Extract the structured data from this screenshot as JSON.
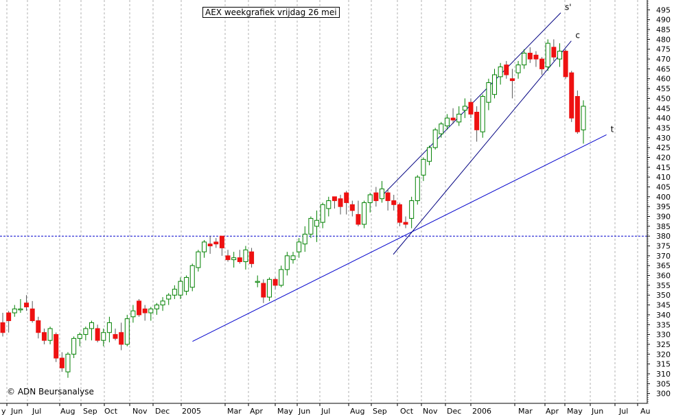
{
  "chart_data": {
    "type": "candlestick",
    "title": "AEX weekgrafiek vrijdag 26 mei",
    "copyright": "© ADN Beursanalyse",
    "ylim": [
      295,
      500
    ],
    "y_ticks": [
      300,
      305,
      310,
      315,
      320,
      325,
      330,
      335,
      340,
      345,
      350,
      355,
      360,
      365,
      370,
      375,
      380,
      385,
      390,
      395,
      400,
      405,
      410,
      415,
      420,
      425,
      430,
      435,
      440,
      445,
      450,
      455,
      460,
      465,
      470,
      475,
      480,
      485,
      490,
      495
    ],
    "x_axis_labels": [
      "y",
      "Jun",
      "Jul",
      "Aug",
      "Sep",
      "Oct",
      "Nov",
      "Dec",
      "2005",
      "Mar",
      "Apr",
      "May",
      "Jun",
      "Jul",
      "Aug",
      "Sep",
      "Oct",
      "Nov",
      "Dec",
      "2006",
      "Mar",
      "Apr",
      "May",
      "Jun",
      "Jul",
      "Au"
    ],
    "grid": "vertical dashed",
    "colors": {
      "up": "#ffffff",
      "up_border": "#008000",
      "down": "#ee1111",
      "trendline": "#0000cc",
      "channel": "#000080",
      "grid": "#b0b0b0"
    },
    "candles": [
      [
        336,
        341,
        329,
        331
      ],
      [
        341,
        342,
        331,
        337
      ],
      [
        341,
        345,
        339,
        343
      ],
      [
        343,
        348,
        341,
        343
      ],
      [
        346,
        350,
        342,
        344
      ],
      [
        343,
        347,
        336,
        337
      ],
      [
        337,
        339,
        328,
        331
      ],
      [
        331,
        333,
        325,
        327
      ],
      [
        327,
        334,
        325,
        333
      ],
      [
        330,
        331,
        316,
        318
      ],
      [
        318,
        321,
        311,
        313
      ],
      [
        311,
        321,
        308,
        320
      ],
      [
        320,
        329,
        318,
        328
      ],
      [
        328,
        331,
        324,
        330
      ],
      [
        330,
        334,
        327,
        333
      ],
      [
        333,
        337,
        327,
        336
      ],
      [
        333,
        335,
        326,
        327
      ],
      [
        327,
        333,
        324,
        331
      ],
      [
        331,
        339,
        326,
        336
      ],
      [
        330,
        333,
        327,
        328
      ],
      [
        331,
        336,
        322,
        325
      ],
      [
        325,
        340,
        324,
        338
      ],
      [
        339,
        345,
        336,
        342
      ],
      [
        347,
        348,
        339,
        340
      ],
      [
        343,
        345,
        337,
        341
      ],
      [
        341,
        344,
        337,
        343
      ],
      [
        343,
        346,
        340,
        345
      ],
      [
        345,
        349,
        342,
        347
      ],
      [
        348,
        351,
        345,
        350
      ],
      [
        350,
        355,
        348,
        353
      ],
      [
        350,
        359,
        348,
        357
      ],
      [
        352,
        360,
        350,
        359
      ],
      [
        354,
        366,
        352,
        365
      ],
      [
        364,
        373,
        362,
        372
      ],
      [
        372,
        378,
        369,
        377
      ],
      [
        376,
        380,
        371,
        375
      ],
      [
        377,
        379,
        374,
        376
      ],
      [
        380,
        380,
        370,
        374
      ],
      [
        370,
        373,
        367,
        368
      ],
      [
        368,
        372,
        364,
        369
      ],
      [
        369,
        373,
        366,
        367
      ],
      [
        367,
        375,
        363,
        373
      ],
      [
        372,
        374,
        364,
        366
      ],
      [
        357,
        360,
        354,
        357
      ],
      [
        356,
        358,
        346,
        349
      ],
      [
        349,
        359,
        347,
        358
      ],
      [
        358,
        359,
        353,
        355
      ],
      [
        355,
        365,
        354,
        363
      ],
      [
        363,
        372,
        360,
        370
      ],
      [
        368,
        372,
        366,
        370
      ],
      [
        372,
        379,
        369,
        377
      ],
      [
        376,
        385,
        372,
        381
      ],
      [
        381,
        390,
        379,
        389
      ],
      [
        385,
        393,
        377,
        388
      ],
      [
        387,
        397,
        384,
        396
      ],
      [
        394,
        400,
        390,
        398
      ],
      [
        400,
        400,
        394,
        398
      ],
      [
        399,
        401,
        391,
        395
      ],
      [
        402,
        403,
        391,
        397
      ],
      [
        396,
        398,
        390,
        393
      ],
      [
        391,
        398,
        385,
        386
      ],
      [
        386,
        398,
        384,
        397
      ],
      [
        397,
        402,
        392,
        401
      ],
      [
        402,
        405,
        395,
        398
      ],
      [
        399,
        408,
        397,
        404
      ],
      [
        402,
        404,
        393,
        398
      ],
      [
        398,
        401,
        393,
        396
      ],
      [
        396,
        397,
        385,
        387
      ],
      [
        387,
        390,
        384,
        386
      ],
      [
        389,
        400,
        384,
        398
      ],
      [
        398,
        411,
        396,
        410
      ],
      [
        411,
        420,
        408,
        419
      ],
      [
        418,
        426,
        416,
        425
      ],
      [
        425,
        435,
        424,
        434
      ],
      [
        432,
        438,
        430,
        437
      ],
      [
        436,
        442,
        434,
        440
      ],
      [
        440,
        445,
        437,
        439
      ],
      [
        438,
        446,
        436,
        442
      ],
      [
        444,
        450,
        440,
        446
      ],
      [
        448,
        450,
        440,
        442
      ],
      [
        443,
        446,
        428,
        434
      ],
      [
        433,
        452,
        430,
        451
      ],
      [
        448,
        460,
        444,
        458
      ],
      [
        452,
        465,
        450,
        462
      ],
      [
        461,
        468,
        457,
        466
      ],
      [
        467,
        469,
        460,
        462
      ],
      [
        460,
        465,
        450,
        459
      ],
      [
        463,
        469,
        460,
        467
      ],
      [
        467,
        475,
        465,
        473
      ],
      [
        473,
        476,
        468,
        470
      ],
      [
        472,
        474,
        466,
        470
      ],
      [
        470,
        471,
        462,
        465
      ],
      [
        466,
        480,
        464,
        478
      ],
      [
        476,
        480,
        469,
        471
      ],
      [
        470,
        478,
        466,
        474
      ],
      [
        474,
        475,
        460,
        461
      ],
      [
        463,
        464,
        438,
        440
      ],
      [
        451,
        454,
        432,
        433
      ],
      [
        434,
        449,
        427,
        446
      ]
    ],
    "reference_line": {
      "value": 380,
      "style": "dashed"
    },
    "lines": [
      {
        "label": "t",
        "from": [
          0.2856,
          326.5
        ],
        "to": [
          0.8998,
          431.5
        ]
      },
      {
        "label": "s'",
        "from": [
          0.5672,
          400.7
        ],
        "to": [
          0.832,
          493.5
        ]
      },
      {
        "label": "c",
        "from": [
          0.5835,
          370.7
        ],
        "to": [
          0.8476,
          479.2
        ]
      }
    ]
  }
}
